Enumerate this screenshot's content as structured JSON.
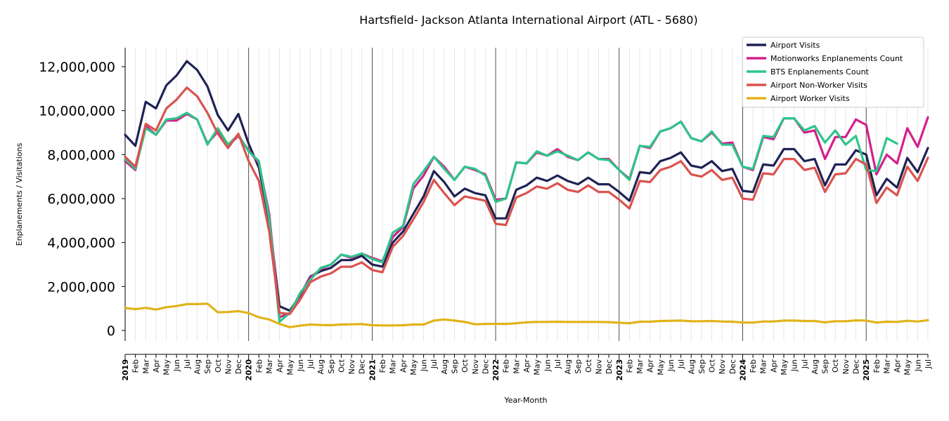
{
  "chart_data": {
    "type": "line",
    "title": "Hartsfield- Jackson Atlanta International Airport (ATL - 5680)",
    "xlabel": "Year-Month",
    "ylabel": "Enplanements / Visitations",
    "ylim": [
      -400000,
      12800000
    ],
    "yticks": [
      0,
      2000000,
      4000000,
      6000000,
      8000000,
      10000000,
      12000000
    ],
    "ytick_labels": [
      "0",
      "2,000,000",
      "4,000,000",
      "6,000,000",
      "8,000,000",
      "10,000,000",
      "12,000,000"
    ],
    "x_start": "2019-01",
    "x_end": "2025-07",
    "month_abbrev": [
      "Jan",
      "Feb",
      "Mar",
      "Apr",
      "May",
      "Jun",
      "Jul",
      "Aug",
      "Sep",
      "Oct",
      "Nov",
      "Dec"
    ],
    "legend_position": "top-right",
    "grid": "vertical monthly lines, year separators",
    "series": [
      {
        "name": "Airport Visits",
        "color": "#1f2255",
        "start": "2019-01",
        "values": [
          8900000,
          8400000,
          10400000,
          10100000,
          11150000,
          11600000,
          12250000,
          11850000,
          11100000,
          9800000,
          9100000,
          9850000,
          8500000,
          7400000,
          5000000,
          1100000,
          900000,
          1600000,
          2450000,
          2700000,
          2850000,
          3200000,
          3200000,
          3400000,
          3000000,
          2900000,
          4000000,
          4500000,
          5300000,
          6100000,
          7250000,
          6750000,
          6100000,
          6450000,
          6250000,
          6150000,
          5100000,
          5100000,
          6400000,
          6600000,
          6950000,
          6800000,
          7050000,
          6800000,
          6650000,
          6950000,
          6650000,
          6650000,
          6300000,
          5900000,
          7200000,
          7150000,
          7700000,
          7850000,
          8100000,
          7500000,
          7400000,
          7700000,
          7250000,
          7350000,
          6350000,
          6300000,
          7550000,
          7500000,
          8250000,
          8250000,
          7700000,
          7800000,
          6600000,
          7550000,
          7550000,
          8200000,
          8000000,
          6150000,
          6900000,
          6500000,
          7850000,
          7200000,
          8300000
        ]
      },
      {
        "name": "Motionworks Enplanements Count",
        "color": "#d41f8c",
        "start": "2019-01",
        "values": [
          7700000,
          7300000,
          9300000,
          8900000,
          9550000,
          9550000,
          9850000,
          9600000,
          8500000,
          9050000,
          8400000,
          8850000,
          8200000,
          7600000,
          5300000,
          600000,
          800000,
          1650000,
          2400000,
          2800000,
          3000000,
          3450000,
          3300000,
          3500000,
          3300000,
          3150000,
          4250000,
          4700000,
          6450000,
          7050000,
          7900000,
          7450000,
          6850000,
          7450000,
          7300000,
          7100000,
          5950000,
          6000000,
          7650000,
          7600000,
          8100000,
          7950000,
          8250000,
          7900000,
          7750000,
          8100000,
          7800000,
          7800000,
          7300000,
          6900000,
          8400000,
          8300000,
          9050000,
          9200000,
          9500000,
          8750000,
          8600000,
          9000000,
          8500000,
          8550000,
          7450000,
          7300000,
          8800000,
          8700000,
          9650000,
          9650000,
          9000000,
          9100000,
          7800000,
          8800000,
          8800000,
          9600000,
          9350000,
          7100000,
          8000000,
          7600000,
          9200000,
          8350000,
          9700000
        ]
      },
      {
        "name": "BTS Enplanements Count",
        "color": "#2cc58a",
        "start": "2019-01",
        "values": [
          7800000,
          7350000,
          9200000,
          8900000,
          9600000,
          9650000,
          9900000,
          9600000,
          8450000,
          9200000,
          8450000,
          8900000,
          8150000,
          7700000,
          5100000,
          400000,
          800000,
          1700000,
          2300000,
          2850000,
          3000000,
          3450000,
          3350000,
          3500000,
          3250000,
          3100000,
          4450000,
          4750000,
          6650000,
          7250000,
          7900000,
          7350000,
          6850000,
          7450000,
          7350000,
          7050000,
          5850000,
          6000000,
          7650000,
          7600000,
          8150000,
          7950000,
          8150000,
          7950000,
          7750000,
          8100000,
          7800000,
          7750000,
          7300000,
          6850000,
          8400000,
          8350000,
          9050000,
          9200000,
          9500000,
          8750000,
          8600000,
          9050000,
          8450000,
          8450000,
          7450000,
          7350000,
          8850000,
          8800000,
          9650000,
          9650000,
          9100000,
          9300000,
          8550000,
          9100000,
          8450000,
          8850000,
          7300000,
          7250000,
          8750000,
          8500000
        ]
      },
      {
        "name": "Airport Non-Worker Visits",
        "color": "#d9534f",
        "start": "2019-01",
        "values": [
          7900000,
          7450000,
          9400000,
          9100000,
          10100000,
          10500000,
          11050000,
          10650000,
          9900000,
          8950000,
          8300000,
          8950000,
          7700000,
          6800000,
          4500000,
          800000,
          750000,
          1400000,
          2200000,
          2450000,
          2600000,
          2900000,
          2900000,
          3100000,
          2750000,
          2650000,
          3800000,
          4300000,
          5050000,
          5850000,
          6850000,
          6250000,
          5700000,
          6100000,
          6000000,
          5900000,
          4850000,
          4800000,
          6050000,
          6250000,
          6550000,
          6450000,
          6700000,
          6400000,
          6300000,
          6600000,
          6300000,
          6300000,
          5950000,
          5550000,
          6800000,
          6750000,
          7300000,
          7450000,
          7700000,
          7100000,
          7000000,
          7300000,
          6850000,
          6950000,
          6000000,
          5950000,
          7150000,
          7100000,
          7800000,
          7800000,
          7300000,
          7400000,
          6300000,
          7100000,
          7150000,
          7800000,
          7550000,
          5800000,
          6500000,
          6150000,
          7450000,
          6800000,
          7850000
        ]
      },
      {
        "name": "Airport Worker Visits",
        "color": "#e0b31a",
        "start": "2019-01",
        "values": [
          1020000,
          970000,
          1030000,
          950000,
          1060000,
          1110000,
          1200000,
          1200000,
          1220000,
          830000,
          840000,
          880000,
          790000,
          600000,
          500000,
          300000,
          150000,
          220000,
          270000,
          250000,
          240000,
          270000,
          280000,
          290000,
          240000,
          230000,
          230000,
          240000,
          270000,
          270000,
          450000,
          500000,
          450000,
          390000,
          280000,
          300000,
          300000,
          300000,
          330000,
          370000,
          390000,
          390000,
          400000,
          390000,
          390000,
          390000,
          390000,
          380000,
          350000,
          330000,
          400000,
          400000,
          430000,
          440000,
          450000,
          420000,
          420000,
          430000,
          410000,
          400000,
          360000,
          360000,
          410000,
          410000,
          450000,
          450000,
          430000,
          430000,
          370000,
          420000,
          420000,
          460000,
          450000,
          360000,
          400000,
          390000,
          440000,
          410000,
          470000
        ]
      }
    ]
  }
}
